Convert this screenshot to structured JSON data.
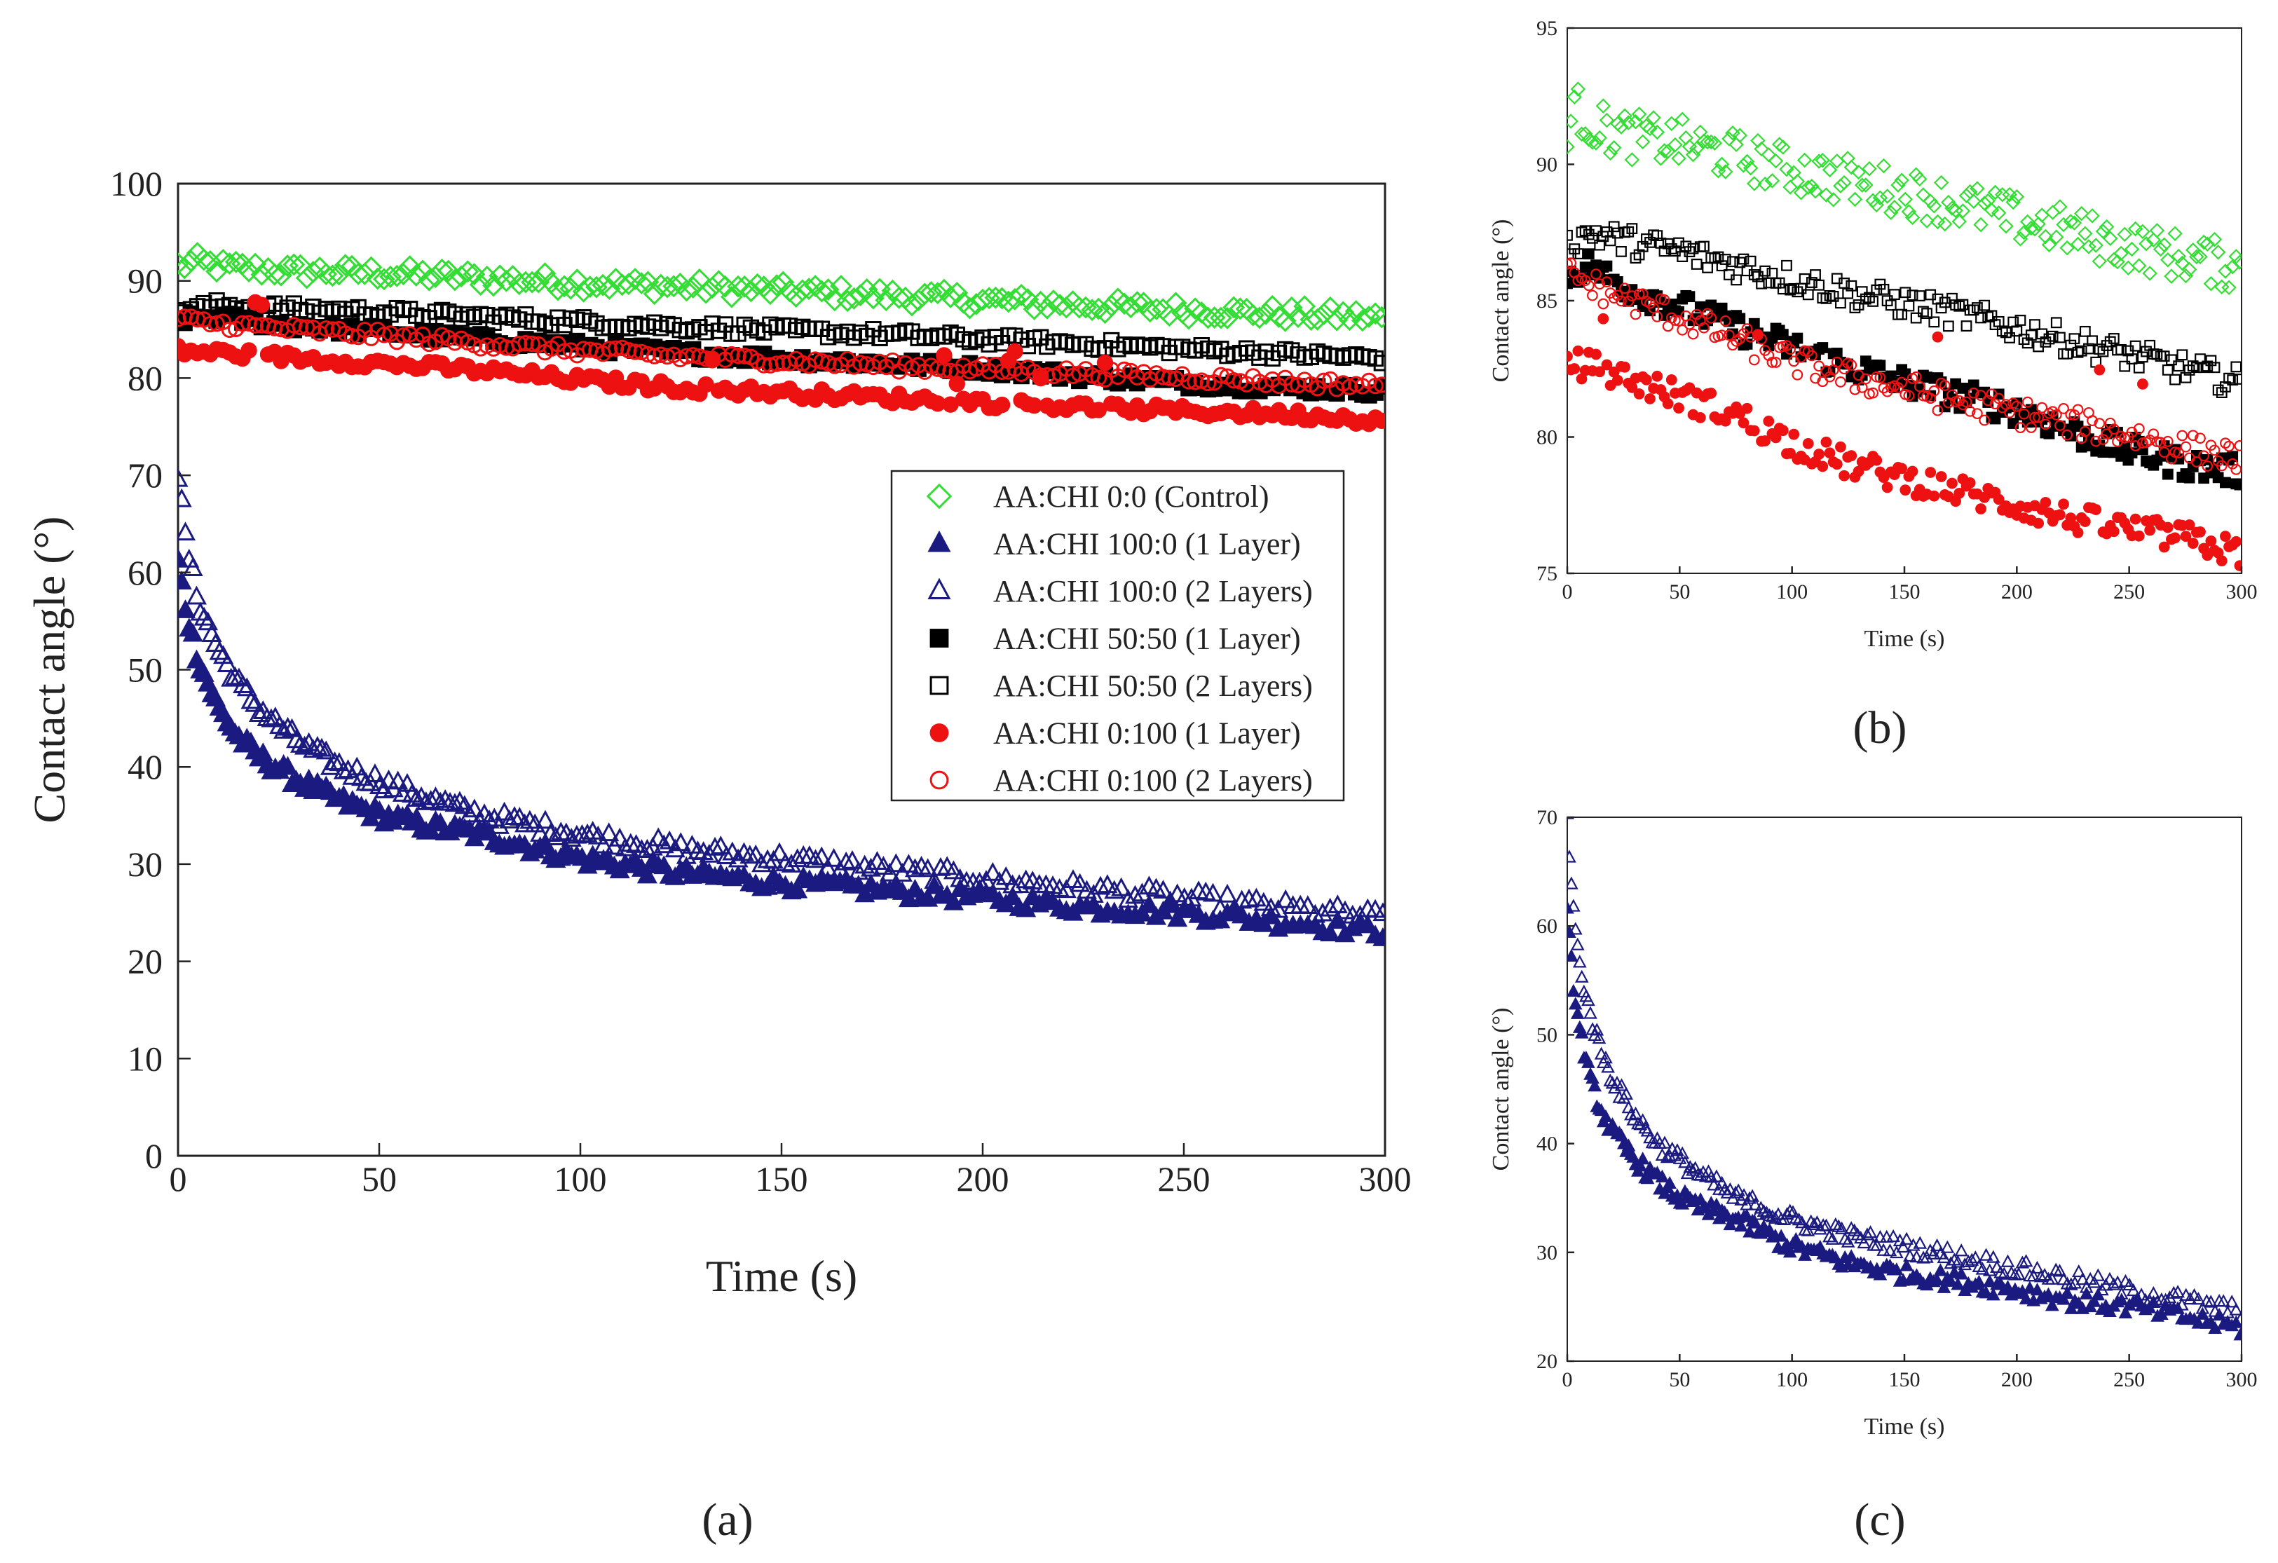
{
  "chart_data": [
    {
      "panel": "a",
      "panel_label": "(a)",
      "type": "scatter",
      "xlabel": "Time (s)",
      "ylabel": "Contact angle (°)",
      "xlim": [
        0,
        300
      ],
      "ylim": [
        0,
        100
      ],
      "xticks": [
        0,
        50,
        100,
        150,
        200,
        250,
        300
      ],
      "yticks": [
        0,
        10,
        20,
        30,
        40,
        50,
        60,
        70,
        80,
        90,
        100
      ],
      "legend_position": "center-right",
      "series": [
        {
          "key": "control",
          "name": "AA:CHI 0:0 (Control)",
          "marker": "diamond-open",
          "color": "#33dd33",
          "x": [
            0,
            5,
            10,
            20,
            30,
            50,
            75,
            100,
            150,
            200,
            250,
            300
          ],
          "y": [
            91.5,
            92,
            91.5,
            91.2,
            91,
            90.8,
            90.3,
            89.8,
            89,
            88,
            87,
            86.2
          ]
        },
        {
          "key": "aa100_1",
          "name": "AA:CHI 100:0 (1 Layer)",
          "marker": "triangle-filled",
          "color": "#1a1a80",
          "x": [
            0,
            2,
            5,
            10,
            15,
            20,
            30,
            40,
            50,
            60,
            75,
            100,
            125,
            150,
            175,
            200,
            225,
            250,
            275,
            300
          ],
          "y": [
            61,
            56,
            51,
            46,
            43,
            41,
            38.5,
            36.5,
            35,
            34,
            33,
            30.5,
            29,
            28,
            27.3,
            26.5,
            25.5,
            25,
            24,
            23
          ]
        },
        {
          "key": "aa100_2",
          "name": "AA:CHI 100:0 (2 Layers)",
          "marker": "triangle-open",
          "color": "#1a1a80",
          "x": [
            0,
            2,
            5,
            10,
            15,
            20,
            30,
            40,
            50,
            60,
            75,
            100,
            125,
            150,
            175,
            200,
            225,
            250,
            275,
            300
          ],
          "y": [
            70,
            63,
            57,
            52,
            48.5,
            46,
            42.5,
            40,
            38.5,
            37,
            35,
            33,
            31.5,
            30.5,
            29.5,
            28.5,
            27.5,
            26.5,
            25.5,
            24.5
          ]
        },
        {
          "key": "aa50_1",
          "name": "AA:CHI 50:50 (1 Layer)",
          "marker": "square-filled",
          "color": "#000000",
          "x": [
            0,
            10,
            25,
            50,
            75,
            100,
            125,
            150,
            175,
            200,
            225,
            250,
            275,
            300
          ],
          "y": [
            86,
            86.3,
            85.5,
            84.8,
            84,
            83.3,
            82.6,
            82,
            81.5,
            81,
            80.2,
            79.5,
            79,
            78.7
          ]
        },
        {
          "key": "aa50_2",
          "name": "AA:CHI 50:50 (2 Layers)",
          "marker": "square-open",
          "color": "#000000",
          "x": [
            0,
            10,
            25,
            50,
            75,
            100,
            125,
            150,
            175,
            200,
            225,
            250,
            275,
            300
          ],
          "y": [
            87,
            87.5,
            87.2,
            86.8,
            86.3,
            85.8,
            85.3,
            84.9,
            84.5,
            84,
            83.5,
            83,
            82.5,
            82
          ]
        },
        {
          "key": "aa0_1",
          "name": "AA:CHI 0:100 (1 Layer)",
          "marker": "circle-filled",
          "color": "#ee1111",
          "x": [
            0,
            10,
            25,
            50,
            75,
            100,
            125,
            150,
            175,
            200,
            225,
            250,
            275,
            300
          ],
          "y": [
            82.8,
            82.6,
            82.2,
            81.5,
            80.8,
            79.8,
            79,
            78.5,
            78,
            77.5,
            77,
            76.6,
            76.3,
            75.7
          ]
        },
        {
          "key": "aa0_2",
          "name": "AA:CHI 0:100 (2 Layers)",
          "marker": "circle-open",
          "color": "#ee1111",
          "x": [
            0,
            10,
            25,
            50,
            75,
            100,
            125,
            150,
            175,
            200,
            225,
            250,
            275,
            300
          ],
          "y": [
            86,
            85.6,
            85.1,
            84.4,
            83.6,
            82.8,
            82.2,
            81.8,
            81.3,
            80.9,
            80.5,
            80.1,
            79.6,
            79.2
          ]
        }
      ]
    },
    {
      "panel": "b",
      "panel_label": "(b)",
      "type": "scatter",
      "xlabel": "Time (s)",
      "ylabel": "Contact angle (°)",
      "xlim": [
        0,
        300
      ],
      "ylim": [
        75,
        95
      ],
      "xticks": [
        0,
        50,
        100,
        150,
        200,
        250,
        300
      ],
      "yticks": [
        75,
        80,
        85,
        90,
        95
      ],
      "series_keys": [
        "control",
        "aa50_1",
        "aa50_2",
        "aa0_1",
        "aa0_2"
      ]
    },
    {
      "panel": "c",
      "panel_label": "(c)",
      "type": "scatter",
      "xlabel": "Time (s)",
      "ylabel": "Contact angle (°)",
      "xlim": [
        0,
        300
      ],
      "ylim": [
        20,
        70
      ],
      "xticks": [
        0,
        50,
        100,
        150,
        200,
        250,
        300
      ],
      "yticks": [
        20,
        30,
        40,
        50,
        60,
        70
      ],
      "series_keys": [
        "aa100_1",
        "aa100_2"
      ]
    }
  ]
}
